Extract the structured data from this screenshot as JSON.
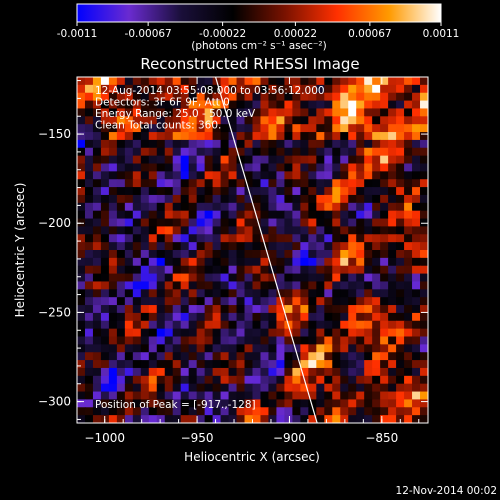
{
  "colorbar": {
    "ticks": [
      "-0.0011",
      "-0.00067",
      "-0.00022",
      "0.00022",
      "0.00067",
      "0.0011"
    ],
    "tick_values": [
      -0.0011,
      -0.00067,
      -0.00022,
      0.00022,
      0.00067,
      0.0011
    ],
    "range": [
      -0.0011,
      0.0011
    ],
    "unit_label": "(photons cm⁻² s⁻¹ asec⁻²)",
    "colors": [
      "#0000ff",
      "#6a2bd0",
      "#1a0f3a",
      "#000000",
      "#7a1200",
      "#ff3000",
      "#ff9a00",
      "#ffffff"
    ]
  },
  "chart_data": {
    "type": "heatmap",
    "title": "Reconstructed RHESSI Image",
    "xlabel": "Heliocentric X (arcsec)",
    "ylabel": "Heliocentric Y (arcsec)",
    "xlim": [
      -1015,
      -825
    ],
    "ylim": [
      -312,
      -118
    ],
    "xticks": [
      -1000,
      -950,
      -900,
      -850
    ],
    "yticks": [
      -150,
      -200,
      -250,
      -300
    ],
    "xtick_labels": [
      "−1000",
      "−950",
      "−900",
      "−850"
    ],
    "ytick_labels": [
      "−150",
      "−200",
      "−250",
      "−300"
    ],
    "annotations": [
      "12-Aug-2014 03:55:08.000 to 03:56:12.000",
      "Detectors: 3F 6F 9F, Att 0",
      "Energy Range: 25.0 - 50.0 keV",
      "Clean   Total counts: 360."
    ],
    "peak_label": "Position of Peak = [-917.,-128]",
    "peak": [
      -917,
      -128
    ],
    "limb_line": [
      [
        -940,
        -118
      ],
      [
        -885,
        -312
      ]
    ],
    "value_range": [
      -0.0011,
      0.0011
    ],
    "grid": false
  },
  "footer": {
    "timestamp": "12-Nov-2014 00:02"
  }
}
